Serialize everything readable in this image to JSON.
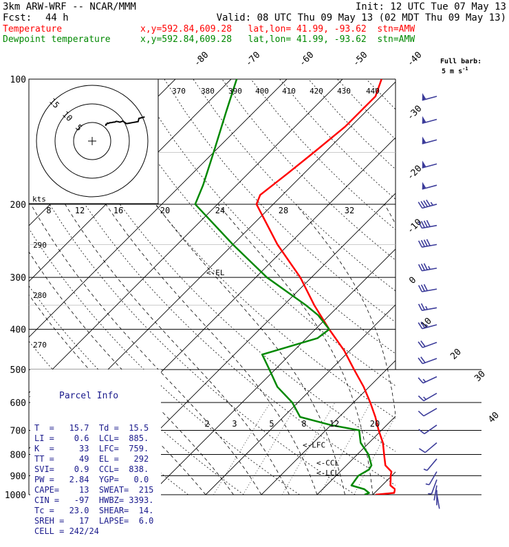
{
  "header": {
    "title": "3km ARW-WRF -- NCAR/MMM",
    "init": "Init: 12 UTC Tue 07 May 13",
    "fcst_label": "Fcst:",
    "fcst_value": "44 h",
    "valid": "Valid: 08 UTC Thu 09 May 13 (02 MDT Thu 09 May 13)",
    "temp_label": "Temperature",
    "temp_info": "x,y=592.84,609.28   lat,lon= 41.99, -93.62  stn=AMW",
    "dew_label": "Dewpoint temperature",
    "dew_info": "x,y=592.84,609.28   lat,lon= 41.99, -93.62  stn=AMW",
    "full_barb": "Full barb:",
    "full_barb_unit": "5 m s",
    "full_barb_exp": "-1"
  },
  "colors": {
    "temperature": "#ff0000",
    "dewpoint": "#008800",
    "parcel_box": "#1a1a8c",
    "barbs": "#3c3c9a",
    "grid": "#000000"
  },
  "chart_data": {
    "type": "line",
    "title": "",
    "pressure_axis": {
      "scale": "log",
      "range": [
        1000,
        100
      ],
      "ticks": [
        "100",
        "200",
        "300",
        "400",
        "500",
        "600",
        "700",
        "800",
        "900",
        "1000"
      ]
    },
    "isotherm_labels": [
      "-80",
      "-70",
      "-60",
      "-50",
      "-40",
      "-30",
      "-20",
      "-10",
      "0",
      "10",
      "20",
      "30",
      "40"
    ],
    "theta_labels": [
      "370",
      "380",
      "390",
      "400",
      "410",
      "420",
      "430",
      "440"
    ],
    "theta_low_labels": [
      "290",
      "280",
      "270"
    ],
    "mixing_ratio_upper": [
      "8",
      "12",
      "16",
      "20",
      "24",
      "28",
      "32"
    ],
    "mixing_ratio_lower": [
      "2",
      "3",
      "5",
      "8",
      "12",
      "20"
    ],
    "series": [
      {
        "name": "Temperature",
        "color": "#ff0000",
        "points": [
          [
            1000,
            20.5
          ],
          [
            990,
            23.5
          ],
          [
            970,
            23.0
          ],
          [
            950,
            21.5
          ],
          [
            920,
            20.5
          ],
          [
            900,
            19.8
          ],
          [
            880,
            19.2
          ],
          [
            850,
            17.0
          ],
          [
            800,
            14.8
          ],
          [
            750,
            12.5
          ],
          [
            700,
            9.5
          ],
          [
            650,
            6.5
          ],
          [
            600,
            3.0
          ],
          [
            550,
            -1.0
          ],
          [
            500,
            -5.8
          ],
          [
            450,
            -11.0
          ],
          [
            400,
            -17.5
          ],
          [
            350,
            -24.5
          ],
          [
            300,
            -32.0
          ],
          [
            250,
            -42.0
          ],
          [
            200,
            -53.0
          ],
          [
            190,
            -54.0
          ],
          [
            170,
            -53.0
          ],
          [
            150,
            -52.0
          ],
          [
            130,
            -51.0
          ],
          [
            110,
            -51.0
          ],
          [
            100,
            -53.0
          ]
        ]
      },
      {
        "name": "Dewpoint temperature",
        "color": "#008800",
        "points": [
          [
            1000,
            18.5
          ],
          [
            990,
            19.0
          ],
          [
            970,
            17.5
          ],
          [
            950,
            14.5
          ],
          [
            900,
            14.0
          ],
          [
            870,
            14.8
          ],
          [
            850,
            14.5
          ],
          [
            800,
            12.0
          ],
          [
            750,
            8.5
          ],
          [
            700,
            6.0
          ],
          [
            680,
            0.0
          ],
          [
            650,
            -7.0
          ],
          [
            600,
            -11.0
          ],
          [
            550,
            -16.5
          ],
          [
            500,
            -21.0
          ],
          [
            460,
            -25.0
          ],
          [
            420,
            -18.0
          ],
          [
            400,
            -17.5
          ],
          [
            370,
            -22.0
          ],
          [
            350,
            -26.0
          ],
          [
            300,
            -38.0
          ],
          [
            250,
            -50.0
          ],
          [
            200,
            -64.0
          ],
          [
            180,
            -66.0
          ],
          [
            150,
            -70.0
          ],
          [
            120,
            -75.0
          ],
          [
            100,
            -79.0
          ]
        ]
      }
    ],
    "levels": [
      {
        "label": "<-LFC",
        "p": 759
      },
      {
        "label": "<-CCL",
        "p": 838
      },
      {
        "label": "<-LCL",
        "p": 885
      },
      {
        "label": "<-EL",
        "p": 292
      }
    ]
  },
  "hodograph": {
    "axis_label": "kts",
    "ring_labels": [
      "5",
      "10",
      "15"
    ],
    "ring_speeds": [
      5,
      10,
      15
    ]
  },
  "parcel_info": {
    "title": "Parcel Info",
    "rows": [
      "T  =   15.7  Td =  15.5",
      "LI =    0.6  LCL=  885.",
      "K  =     33  LFC=  759.",
      "TT =     49  EL =   292",
      "SVI=    0.9  CCL=  838.",
      "PW =   2.84  YGP=   0.0",
      "CAPE=    13  SWEAT=  215",
      "CIN =   -97  HWBZ= 3393.",
      "Tc =   23.0  SHEAR=  14.",
      "SREH =   17  LAPSE=  6.0",
      "CELL = 242/24"
    ]
  },
  "wind_barbs": [
    {
      "p": 110,
      "dir": 255,
      "spd_ms": 27
    },
    {
      "p": 125,
      "dir": 255,
      "spd_ms": 27
    },
    {
      "p": 140,
      "dir": 255,
      "spd_ms": 26
    },
    {
      "p": 160,
      "dir": 255,
      "spd_ms": 25
    },
    {
      "p": 180,
      "dir": 255,
      "spd_ms": 25
    },
    {
      "p": 200,
      "dir": 255,
      "spd_ms": 23
    },
    {
      "p": 225,
      "dir": 260,
      "spd_ms": 22
    },
    {
      "p": 250,
      "dir": 260,
      "spd_ms": 20
    },
    {
      "p": 285,
      "dir": 260,
      "spd_ms": 18
    },
    {
      "p": 320,
      "dir": 260,
      "spd_ms": 16
    },
    {
      "p": 355,
      "dir": 260,
      "spd_ms": 14
    },
    {
      "p": 390,
      "dir": 255,
      "spd_ms": 13
    },
    {
      "p": 430,
      "dir": 250,
      "spd_ms": 12
    },
    {
      "p": 470,
      "dir": 250,
      "spd_ms": 10
    },
    {
      "p": 520,
      "dir": 245,
      "spd_ms": 9
    },
    {
      "p": 570,
      "dir": 240,
      "spd_ms": 8
    },
    {
      "p": 620,
      "dir": 240,
      "spd_ms": 7
    },
    {
      "p": 680,
      "dir": 235,
      "spd_ms": 6
    },
    {
      "p": 750,
      "dir": 230,
      "spd_ms": 5
    },
    {
      "p": 820,
      "dir": 220,
      "spd_ms": 4
    },
    {
      "p": 880,
      "dir": 210,
      "spd_ms": 3
    },
    {
      "p": 920,
      "dir": 200,
      "spd_ms": 3
    },
    {
      "p": 950,
      "dir": 190,
      "spd_ms": 2
    },
    {
      "p": 975,
      "dir": 180,
      "spd_ms": 2
    },
    {
      "p": 995,
      "dir": 170,
      "spd_ms": 1
    }
  ]
}
